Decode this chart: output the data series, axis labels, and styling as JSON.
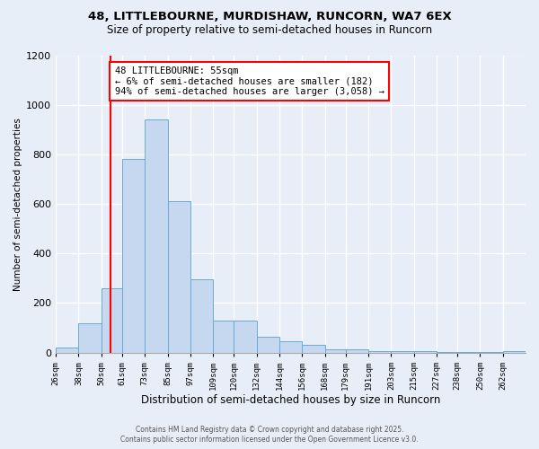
{
  "title1": "48, LITTLEBOURNE, MURDISHAW, RUNCORN, WA7 6EX",
  "title2": "Size of property relative to semi-detached houses in Runcorn",
  "xlabel": "Distribution of semi-detached houses by size in Runcorn",
  "ylabel": "Number of semi-detached properties",
  "footer1": "Contains HM Land Registry data © Crown copyright and database right 2025.",
  "footer2": "Contains public sector information licensed under the Open Government Licence v3.0.",
  "bins": [
    26,
    38,
    50,
    61,
    73,
    85,
    97,
    109,
    120,
    132,
    144,
    156,
    168,
    179,
    191,
    203,
    215,
    227,
    238,
    250,
    262
  ],
  "values": [
    20,
    120,
    260,
    780,
    940,
    610,
    295,
    130,
    130,
    65,
    45,
    30,
    15,
    15,
    5,
    5,
    5,
    2,
    1,
    1,
    5
  ],
  "bar_color": "#c5d8f0",
  "bar_edge_color": "#6aaad4",
  "red_line_x": 55,
  "ylim": [
    0,
    1200
  ],
  "annotation_text": "48 LITTLEBOURNE: 55sqm\n← 6% of semi-detached houses are smaller (182)\n94% of semi-detached houses are larger (3,058) →",
  "annotation_box_color": "white",
  "annotation_box_edge": "red",
  "tick_labels": [
    "26sqm",
    "38sqm",
    "50sqm",
    "61sqm",
    "73sqm",
    "85sqm",
    "97sqm",
    "109sqm",
    "120sqm",
    "132sqm",
    "144sqm",
    "156sqm",
    "168sqm",
    "179sqm",
    "191sqm",
    "203sqm",
    "215sqm",
    "227sqm",
    "238sqm",
    "250sqm",
    "262sqm"
  ],
  "bg_color": "#e8eef8",
  "grid_color": "white",
  "yticks": [
    0,
    200,
    400,
    600,
    800,
    1000,
    1200
  ]
}
